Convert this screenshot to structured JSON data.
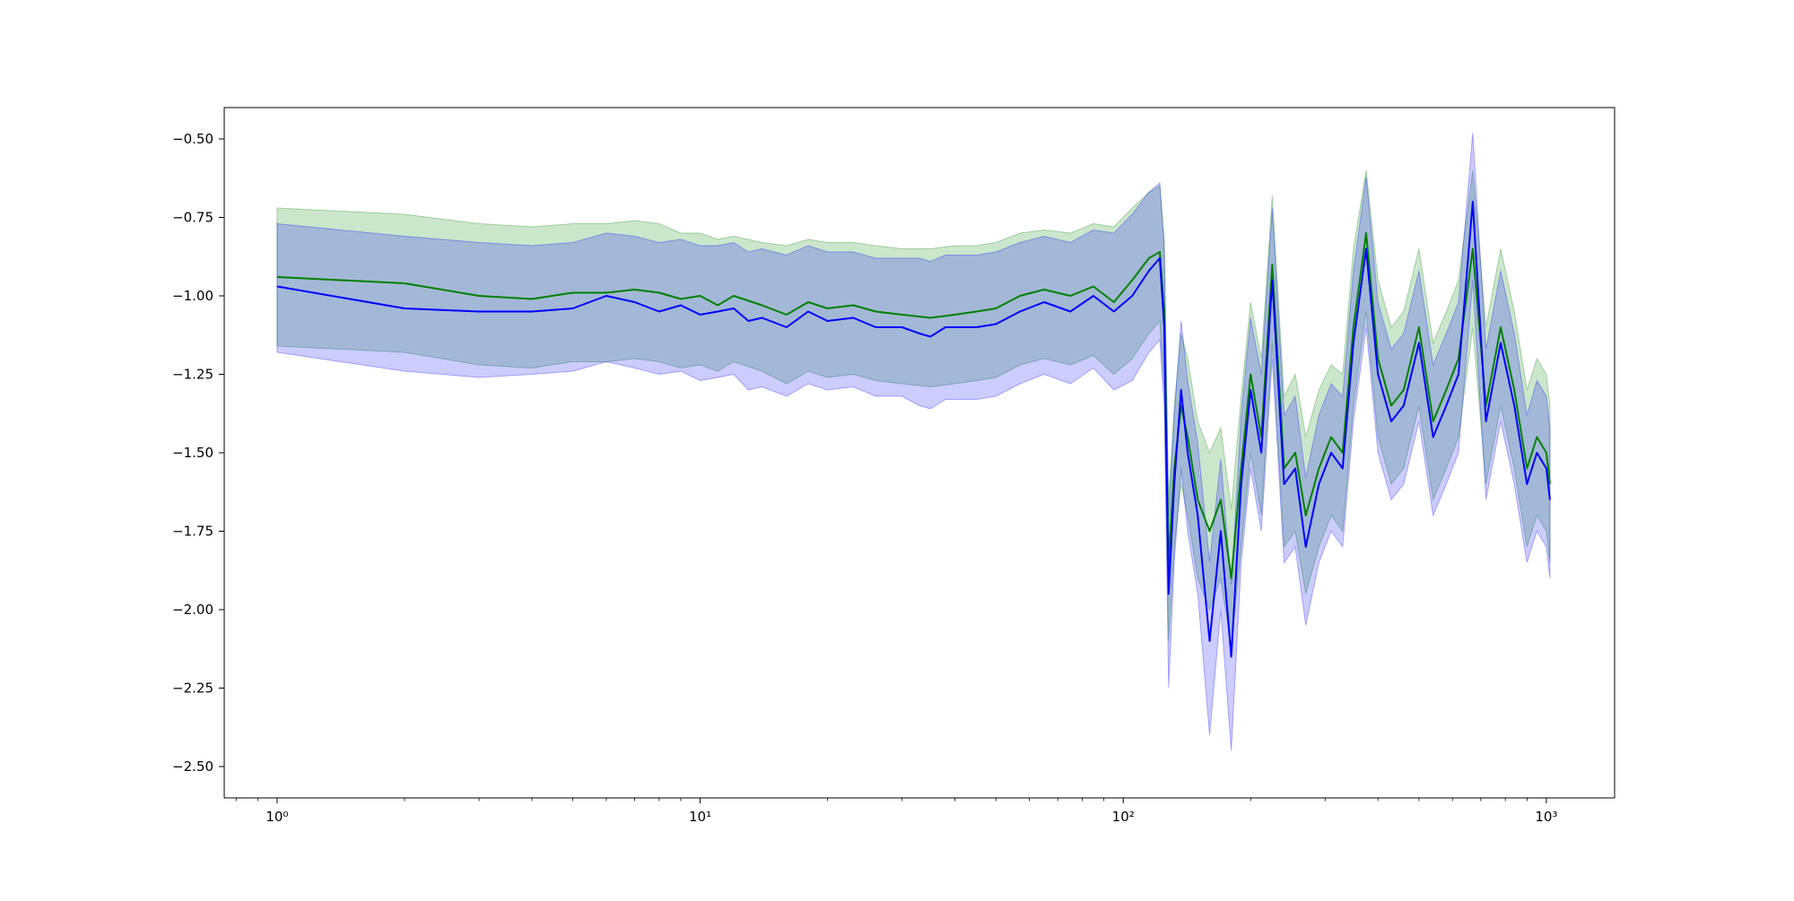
{
  "colors": {
    "background": "#ffffff",
    "series_green": "#008000",
    "series_blue": "#0000ff",
    "band_green": "#008000",
    "band_blue": "#0000ff",
    "axes": "#000000"
  },
  "chart_data": {
    "type": "line",
    "title": "",
    "xlabel": "",
    "ylabel": "",
    "xscale": "log",
    "xlim": [
      0.75,
      1450
    ],
    "ylim": [
      -2.6,
      -0.4
    ],
    "grid": false,
    "legend": "none",
    "x_ticks": [
      {
        "value": 1,
        "label": "10⁰"
      },
      {
        "value": 10,
        "label": "10¹"
      },
      {
        "value": 100,
        "label": "10²"
      },
      {
        "value": 1000,
        "label": "10³"
      }
    ],
    "y_ticks": [
      {
        "value": -0.5,
        "label": "−0.50"
      },
      {
        "value": -0.75,
        "label": "−0.75"
      },
      {
        "value": -1.0,
        "label": "−1.00"
      },
      {
        "value": -1.25,
        "label": "−1.25"
      },
      {
        "value": -1.5,
        "label": "−1.50"
      },
      {
        "value": -1.75,
        "label": "−1.75"
      },
      {
        "value": -2.0,
        "label": "−2.00"
      },
      {
        "value": -2.25,
        "label": "−2.25"
      },
      {
        "value": -2.5,
        "label": "−2.50"
      }
    ],
    "series": [
      {
        "color": "#008000",
        "band_alpha": 0.2,
        "x": [
          1,
          2,
          3,
          4,
          5,
          6,
          7,
          8,
          9,
          10,
          11,
          12,
          14,
          16,
          18,
          20,
          23,
          26,
          30,
          35,
          40,
          45,
          50,
          57,
          65,
          75,
          85,
          95,
          105,
          115,
          122,
          125,
          128,
          132,
          137,
          142,
          150,
          160,
          170,
          180,
          190,
          200,
          212,
          225,
          240,
          255,
          270,
          290,
          310,
          330,
          350,
          375,
          400,
          430,
          460,
          500,
          540,
          580,
          620,
          670,
          720,
          780,
          840,
          900,
          950,
          1000,
          1020
        ],
        "y": [
          -0.94,
          -0.96,
          -1.0,
          -1.01,
          -0.99,
          -0.99,
          -0.98,
          -0.99,
          -1.01,
          -1.0,
          -1.03,
          -1.0,
          -1.03,
          -1.06,
          -1.02,
          -1.04,
          -1.03,
          -1.05,
          -1.06,
          -1.07,
          -1.06,
          -1.05,
          -1.04,
          -1.0,
          -0.98,
          -1.0,
          -0.97,
          -1.02,
          -0.95,
          -0.88,
          -0.86,
          -1.05,
          -1.85,
          -1.55,
          -1.35,
          -1.45,
          -1.65,
          -1.75,
          -1.65,
          -1.9,
          -1.55,
          -1.25,
          -1.45,
          -0.9,
          -1.55,
          -1.5,
          -1.7,
          -1.55,
          -1.45,
          -1.5,
          -1.1,
          -0.8,
          -1.2,
          -1.35,
          -1.3,
          -1.1,
          -1.4,
          -1.3,
          -1.2,
          -0.85,
          -1.35,
          -1.1,
          -1.3,
          -1.55,
          -1.45,
          -1.5,
          -1.6
        ],
        "upper": [
          -0.72,
          -0.74,
          -0.77,
          -0.78,
          -0.77,
          -0.77,
          -0.76,
          -0.77,
          -0.8,
          -0.8,
          -0.82,
          -0.81,
          -0.83,
          -0.84,
          -0.82,
          -0.83,
          -0.83,
          -0.84,
          -0.85,
          -0.85,
          -0.84,
          -0.84,
          -0.83,
          -0.8,
          -0.79,
          -0.8,
          -0.77,
          -0.78,
          -0.72,
          -0.67,
          -0.65,
          -0.82,
          -1.65,
          -1.35,
          -1.12,
          -1.2,
          -1.4,
          -1.5,
          -1.42,
          -1.68,
          -1.32,
          -1.02,
          -1.2,
          -0.68,
          -1.32,
          -1.25,
          -1.45,
          -1.3,
          -1.22,
          -1.25,
          -0.85,
          -0.6,
          -0.95,
          -1.1,
          -1.05,
          -0.85,
          -1.15,
          -1.05,
          -0.95,
          -0.6,
          -1.1,
          -0.85,
          -1.05,
          -1.3,
          -1.2,
          -1.25,
          -1.35
        ],
        "lower": [
          -1.16,
          -1.18,
          -1.22,
          -1.23,
          -1.21,
          -1.21,
          -1.2,
          -1.21,
          -1.23,
          -1.22,
          -1.24,
          -1.21,
          -1.24,
          -1.28,
          -1.24,
          -1.26,
          -1.25,
          -1.27,
          -1.28,
          -1.29,
          -1.28,
          -1.27,
          -1.26,
          -1.22,
          -1.2,
          -1.22,
          -1.19,
          -1.25,
          -1.2,
          -1.12,
          -1.08,
          -1.3,
          -2.1,
          -1.8,
          -1.6,
          -1.7,
          -1.9,
          -2.0,
          -1.9,
          -2.12,
          -1.8,
          -1.5,
          -1.7,
          -1.15,
          -1.8,
          -1.75,
          -1.95,
          -1.8,
          -1.7,
          -1.75,
          -1.35,
          -1.05,
          -1.45,
          -1.6,
          -1.55,
          -1.35,
          -1.65,
          -1.55,
          -1.45,
          -1.1,
          -1.6,
          -1.35,
          -1.55,
          -1.8,
          -1.7,
          -1.75,
          -1.85
        ]
      },
      {
        "color": "#0000ff",
        "band_alpha": 0.2,
        "x": [
          1,
          2,
          3,
          4,
          5,
          6,
          7,
          8,
          9,
          10,
          11,
          12,
          13,
          14,
          16,
          18,
          20,
          23,
          26,
          30,
          33,
          35,
          38,
          40,
          45,
          50,
          57,
          65,
          75,
          85,
          95,
          105,
          115,
          122,
          125,
          128,
          132,
          137,
          142,
          150,
          160,
          170,
          180,
          190,
          200,
          212,
          225,
          240,
          255,
          270,
          290,
          310,
          330,
          350,
          375,
          400,
          430,
          460,
          500,
          540,
          580,
          620,
          670,
          720,
          780,
          840,
          900,
          950,
          1000,
          1020
        ],
        "y": [
          -0.97,
          -1.04,
          -1.05,
          -1.05,
          -1.04,
          -1.0,
          -1.02,
          -1.05,
          -1.03,
          -1.06,
          -1.05,
          -1.04,
          -1.08,
          -1.07,
          -1.1,
          -1.05,
          -1.08,
          -1.07,
          -1.1,
          -1.1,
          -1.12,
          -1.13,
          -1.1,
          -1.1,
          -1.1,
          -1.09,
          -1.05,
          -1.02,
          -1.05,
          -1.0,
          -1.05,
          -1.0,
          -0.92,
          -0.88,
          -1.1,
          -1.95,
          -1.6,
          -1.3,
          -1.5,
          -1.7,
          -2.1,
          -1.75,
          -2.15,
          -1.6,
          -1.3,
          -1.5,
          -0.95,
          -1.6,
          -1.55,
          -1.8,
          -1.6,
          -1.5,
          -1.55,
          -1.15,
          -0.85,
          -1.25,
          -1.4,
          -1.35,
          -1.15,
          -1.45,
          -1.35,
          -1.25,
          -0.7,
          -1.4,
          -1.15,
          -1.35,
          -1.6,
          -1.5,
          -1.55,
          -1.65
        ],
        "upper": [
          -0.77,
          -0.81,
          -0.83,
          -0.84,
          -0.83,
          -0.8,
          -0.81,
          -0.83,
          -0.82,
          -0.84,
          -0.84,
          -0.83,
          -0.86,
          -0.85,
          -0.87,
          -0.84,
          -0.86,
          -0.86,
          -0.88,
          -0.88,
          -0.88,
          -0.89,
          -0.87,
          -0.87,
          -0.87,
          -0.86,
          -0.83,
          -0.81,
          -0.83,
          -0.79,
          -0.8,
          -0.74,
          -0.67,
          -0.64,
          -0.85,
          -1.7,
          -1.38,
          -1.08,
          -1.27,
          -1.47,
          -1.85,
          -1.52,
          -1.92,
          -1.38,
          -1.07,
          -1.25,
          -0.72,
          -1.38,
          -1.32,
          -1.58,
          -1.38,
          -1.28,
          -1.32,
          -0.92,
          -0.62,
          -1.02,
          -1.17,
          -1.12,
          -0.92,
          -1.22,
          -1.12,
          -1.02,
          -0.48,
          -1.17,
          -0.92,
          -1.12,
          -1.38,
          -1.27,
          -1.32,
          -1.42
        ],
        "lower": [
          -1.18,
          -1.24,
          -1.26,
          -1.25,
          -1.24,
          -1.21,
          -1.23,
          -1.25,
          -1.24,
          -1.27,
          -1.26,
          -1.25,
          -1.3,
          -1.29,
          -1.32,
          -1.28,
          -1.3,
          -1.29,
          -1.32,
          -1.32,
          -1.35,
          -1.36,
          -1.33,
          -1.33,
          -1.33,
          -1.32,
          -1.28,
          -1.25,
          -1.28,
          -1.23,
          -1.3,
          -1.27,
          -1.18,
          -1.14,
          -1.35,
          -2.25,
          -1.85,
          -1.55,
          -1.75,
          -1.95,
          -2.4,
          -2.0,
          -2.45,
          -1.85,
          -1.55,
          -1.75,
          -1.2,
          -1.85,
          -1.8,
          -2.05,
          -1.85,
          -1.75,
          -1.8,
          -1.4,
          -1.1,
          -1.5,
          -1.65,
          -1.6,
          -1.4,
          -1.7,
          -1.6,
          -1.5,
          -0.95,
          -1.65,
          -1.4,
          -1.6,
          -1.85,
          -1.75,
          -1.8,
          -1.9
        ]
      }
    ]
  }
}
